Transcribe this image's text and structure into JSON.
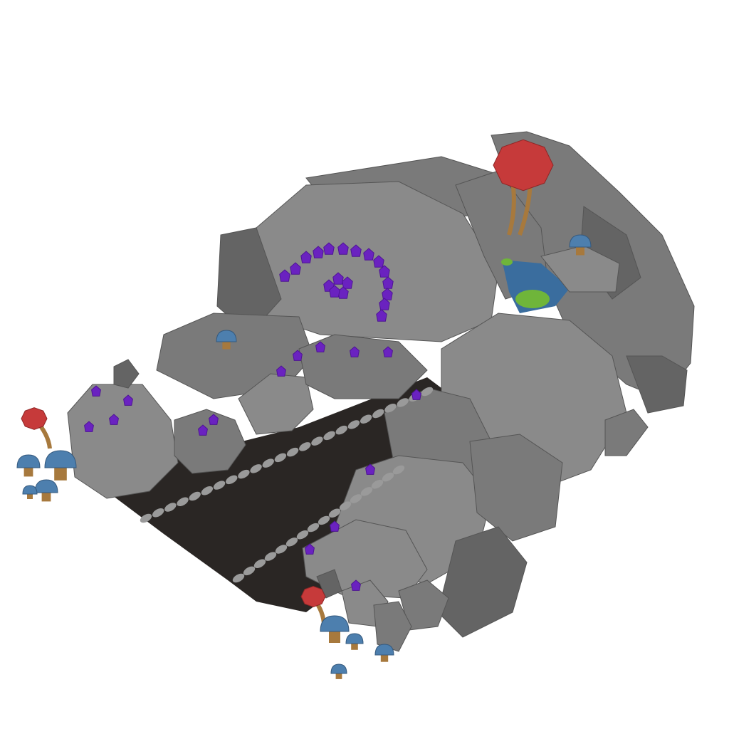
{
  "scene": {
    "subject": "low-poly cave",
    "background": "#ffffff",
    "colors": {
      "rock_light": "#8a8a8a",
      "rock_mid": "#7a7a7a",
      "rock_dark": "#646464",
      "rock_shadow": "#555555",
      "cave_floor": "#2a2624",
      "track": "#9a9a9a",
      "crystal": "#6a22c0",
      "crystal_dark": "#4e1494",
      "water": "#3a6d9e",
      "lily_pad": "#6fb53a",
      "mushroom_red": "#c63a3a",
      "mushroom_blue": "#4d7fae",
      "mushroom_stem": "#a7793d"
    },
    "icons": [
      "red-mushroom-icon",
      "blue-mushroom-icon",
      "crystal-icon",
      "lily-pad-icon"
    ]
  }
}
